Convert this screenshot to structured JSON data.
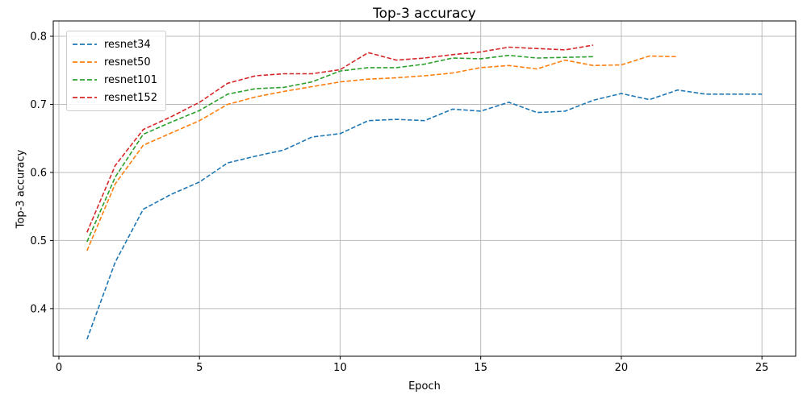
{
  "figure": {
    "title": "Top-3 accuracy",
    "xlabel": "Epoch",
    "ylabel": "Top-3 accuracy"
  },
  "chart_data": {
    "type": "line",
    "title": "Top-3 accuracy",
    "xlabel": "Epoch",
    "ylabel": "Top-3 accuracy",
    "grid": true,
    "legend_position": "upper left",
    "line_style": "dashed",
    "xlim": [
      -0.2,
      26.2
    ],
    "ylim": [
      0.33,
      0.8225
    ],
    "x_ticks": [
      0,
      5,
      10,
      15,
      20,
      25
    ],
    "x_tick_labels": [
      "0",
      "5",
      "10",
      "15",
      "20",
      "25"
    ],
    "y_ticks": [
      0.4,
      0.5,
      0.6,
      0.7,
      0.8
    ],
    "y_tick_labels": [
      "0.4",
      "0.5",
      "0.6",
      "0.7",
      "0.8"
    ],
    "grid_color": "#b0b0b0",
    "series": [
      {
        "name": "resnet34",
        "color": "#1f77b4",
        "x": [
          1,
          2,
          3,
          4,
          5,
          6,
          7,
          8,
          9,
          10,
          11,
          12,
          13,
          14,
          15,
          16,
          17,
          18,
          19,
          20,
          21,
          22,
          23,
          24,
          25
        ],
        "y": [
          0.355,
          0.468,
          0.546,
          0.568,
          0.586,
          0.614,
          0.624,
          0.633,
          0.652,
          0.657,
          0.676,
          0.678,
          0.676,
          0.693,
          0.69,
          0.703,
          0.688,
          0.69,
          0.706,
          0.716,
          0.707,
          0.721,
          0.715,
          0.715,
          0.715
        ]
      },
      {
        "name": "resnet50",
        "color": "#ff7f0e",
        "x": [
          1,
          2,
          3,
          4,
          5,
          6,
          7,
          8,
          9,
          10,
          11,
          12,
          13,
          14,
          15,
          16,
          17,
          18,
          19,
          20,
          21,
          22
        ],
        "y": [
          0.485,
          0.583,
          0.64,
          0.658,
          0.676,
          0.7,
          0.711,
          0.719,
          0.726,
          0.733,
          0.737,
          0.739,
          0.742,
          0.746,
          0.754,
          0.757,
          0.752,
          0.765,
          0.757,
          0.758,
          0.771,
          0.77
        ]
      },
      {
        "name": "resnet101",
        "color": "#2ca02c",
        "x": [
          1,
          2,
          3,
          4,
          5,
          6,
          7,
          8,
          9,
          10,
          11,
          12,
          13,
          14,
          15,
          16,
          17,
          18,
          19
        ],
        "y": [
          0.498,
          0.593,
          0.656,
          0.674,
          0.691,
          0.715,
          0.723,
          0.725,
          0.733,
          0.749,
          0.754,
          0.754,
          0.759,
          0.768,
          0.767,
          0.772,
          0.768,
          0.769,
          0.77
        ]
      },
      {
        "name": "resnet152",
        "color": "#d62728",
        "x": [
          1,
          2,
          3,
          4,
          5,
          6,
          7,
          8,
          9,
          10,
          11,
          12,
          13,
          14,
          15,
          16,
          17,
          18,
          19
        ],
        "y": [
          0.512,
          0.61,
          0.663,
          0.682,
          0.703,
          0.731,
          0.742,
          0.745,
          0.745,
          0.751,
          0.776,
          0.765,
          0.768,
          0.773,
          0.777,
          0.784,
          0.782,
          0.78,
          0.787
        ]
      }
    ]
  }
}
